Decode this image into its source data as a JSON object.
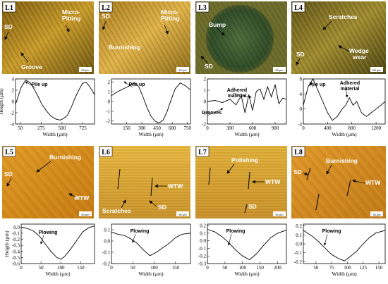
{
  "micrographs": [
    {
      "id": "L1",
      "scale": "50 μm",
      "annotations": [
        "SD",
        "Micro-\nPitting",
        "Groove"
      ]
    },
    {
      "id": "L2",
      "scale": "50 μm",
      "annotations": [
        "SD",
        "Micro-\nPitting",
        "Burnishing"
      ]
    },
    {
      "id": "L3",
      "scale": "50 μm",
      "annotations": [
        "Bump",
        "SD"
      ]
    },
    {
      "id": "L4",
      "scale": "50 μm",
      "annotations": [
        "Scratches",
        "SD",
        "Wedge\nwear"
      ]
    },
    {
      "id": "L5",
      "scale": "50 μm",
      "annotations": [
        "Burnishing",
        "SD",
        "WTW"
      ]
    },
    {
      "id": "L6",
      "scale": "50 μm",
      "annotations": [
        "WTW",
        "Scratches",
        "SD"
      ]
    },
    {
      "id": "L7",
      "scale": "50 μm",
      "annotations": [
        "Polishing",
        "WTW",
        "SD"
      ]
    },
    {
      "id": "L8",
      "scale": "50 μm",
      "annotations": [
        "Burnishing",
        "SD",
        "WTW"
      ]
    }
  ],
  "chart_data": [
    {
      "id": "L1",
      "type": "line",
      "xlabel": "Width (μm)",
      "ylabel": "Heigth (μm)",
      "xticks": [
        "50",
        "275",
        "500",
        "725"
      ],
      "yticks": [
        "4",
        "2",
        "0",
        "-2",
        "-4"
      ],
      "xlim": [
        0,
        850
      ],
      "ylim": [
        -4,
        4
      ],
      "annotations": [
        "Pile up"
      ],
      "x": [
        0,
        60,
        110,
        160,
        200,
        240,
        280,
        330,
        380,
        430,
        480,
        520,
        560,
        600,
        640,
        680,
        720,
        760,
        800,
        850
      ],
      "y": [
        -0.5,
        2.5,
        3.8,
        3.3,
        2.2,
        1.0,
        -0.4,
        -1.6,
        -2.6,
        -3.1,
        -3.3,
        -3.0,
        -2.4,
        -1.0,
        0.6,
        2.0,
        3.2,
        3.4,
        2.6,
        1.2
      ]
    },
    {
      "id": "L2",
      "type": "line",
      "xlabel": "Width (μm)",
      "ylabel": "",
      "xticks": [
        "150",
        "300",
        "450",
        "600",
        "750"
      ],
      "yticks": [
        "2",
        "1",
        "0",
        "-1",
        "-2"
      ],
      "xlim": [
        0,
        780
      ],
      "ylim": [
        -2.3,
        2.3
      ],
      "annotations": [
        "Pile up"
      ],
      "x": [
        0,
        60,
        120,
        180,
        230,
        270,
        310,
        350,
        390,
        430,
        470,
        510,
        550,
        590,
        630,
        680,
        730,
        780
      ],
      "y": [
        0.6,
        1.0,
        1.3,
        1.6,
        1.9,
        1.5,
        0.5,
        -0.6,
        -1.5,
        -2.0,
        -2.2,
        -1.9,
        -1.0,
        0.2,
        1.3,
        1.9,
        1.6,
        1.2
      ]
    },
    {
      "id": "L3",
      "type": "line",
      "xlabel": "Width (μm)",
      "ylabel": "",
      "xticks": [
        "0",
        "300",
        "600",
        "900"
      ],
      "yticks": [
        "2",
        "1",
        "0",
        "-1",
        "-2"
      ],
      "xlim": [
        0,
        1050
      ],
      "ylim": [
        -2,
        2
      ],
      "annotations": [
        "Adhered\nmaterial",
        "Grooves"
      ],
      "x": [
        0,
        100,
        200,
        300,
        380,
        450,
        500,
        550,
        600,
        650,
        700,
        750,
        800,
        850,
        900,
        950,
        1000,
        1050
      ],
      "y": [
        0.0,
        0.1,
        -0.1,
        0.2,
        -0.3,
        0.5,
        -1.0,
        0.6,
        -0.8,
        0.9,
        1.1,
        0.2,
        1.3,
        0.4,
        1.5,
        -0.2,
        0.3,
        0.2
      ]
    },
    {
      "id": "L4",
      "type": "line",
      "xlabel": "Width (μm)",
      "ylabel": "",
      "xticks": [
        "0",
        "400",
        "800",
        "1200"
      ],
      "yticks": [
        "8",
        "4",
        "0",
        "-4"
      ],
      "xlim": [
        0,
        1350
      ],
      "ylim": [
        -4,
        8
      ],
      "annotations": [
        "Pile up",
        "Adhered\nmaterial"
      ],
      "x": [
        0,
        80,
        160,
        240,
        320,
        400,
        480,
        560,
        640,
        700,
        760,
        820,
        880,
        960,
        1040,
        1120,
        1200,
        1280,
        1350
      ],
      "y": [
        1,
        6,
        8,
        5,
        2,
        -1,
        -3,
        -2,
        0,
        1,
        3,
        1,
        2,
        -1,
        -2,
        -1,
        0,
        1,
        2
      ]
    },
    {
      "id": "L5",
      "type": "line",
      "xlabel": "Width (μm)",
      "ylabel": "Heigth (μm)",
      "xticks": [
        "0",
        "50",
        "100",
        "150"
      ],
      "yticks": [
        "0.0",
        "-0.1",
        "-0.2",
        "-0.3",
        "-0.4",
        "-0.5",
        "-0.6"
      ],
      "xlim": [
        0,
        185
      ],
      "ylim": [
        -0.6,
        0.05
      ],
      "annotations": [
        "Plowing"
      ],
      "x": [
        0,
        15,
        30,
        45,
        60,
        75,
        90,
        100,
        110,
        125,
        140,
        155,
        170,
        185
      ],
      "y": [
        0.0,
        -0.02,
        -0.06,
        -0.14,
        -0.27,
        -0.4,
        -0.5,
        -0.53,
        -0.48,
        -0.36,
        -0.22,
        -0.08,
        -0.01,
        0.02
      ]
    },
    {
      "id": "L6",
      "type": "line",
      "xlabel": "Width (μm)",
      "ylabel": "",
      "xticks": [
        "0",
        "50",
        "100",
        "150"
      ],
      "yticks": [
        "0.1",
        "0.0",
        "-0.1",
        "-0.2"
      ],
      "xlim": [
        0,
        185
      ],
      "ylim": [
        -0.2,
        0.15
      ],
      "annotations": [
        "Plowing"
      ],
      "x": [
        0,
        15,
        30,
        45,
        60,
        75,
        90,
        105,
        120,
        135,
        150,
        165,
        185
      ],
      "y": [
        0.08,
        0.06,
        0.05,
        0.02,
        -0.02,
        -0.08,
        -0.13,
        -0.1,
        -0.06,
        -0.02,
        0.03,
        0.06,
        0.07
      ]
    },
    {
      "id": "L7",
      "type": "line",
      "xlabel": "Width (μm)",
      "ylabel": "",
      "xticks": [
        "0",
        "50",
        "100",
        "150",
        "200"
      ],
      "yticks": [
        "0.2",
        "0.1",
        "0.0",
        "-0.1",
        "-0.2",
        "-0.3"
      ],
      "xlim": [
        0,
        225
      ],
      "ylim": [
        -0.3,
        0.22
      ],
      "annotations": [
        "Plowing"
      ],
      "x": [
        0,
        20,
        40,
        60,
        80,
        100,
        120,
        140,
        160,
        180,
        200,
        225
      ],
      "y": [
        0.15,
        0.12,
        0.06,
        -0.02,
        -0.12,
        -0.2,
        -0.25,
        -0.17,
        -0.06,
        0.04,
        0.1,
        0.14
      ]
    },
    {
      "id": "L8",
      "type": "line",
      "xlabel": "Width (μm)",
      "ylabel": "",
      "xticks": [
        "50",
        "75",
        "100",
        "125",
        "150"
      ],
      "yticks": [
        "0.2",
        "0.1",
        "0.0",
        "-0.1",
        "-0.2"
      ],
      "xlim": [
        30,
        160
      ],
      "ylim": [
        -0.22,
        0.22
      ],
      "annotations": [
        "Plowing"
      ],
      "x": [
        30,
        45,
        55,
        65,
        75,
        85,
        95,
        105,
        115,
        125,
        135,
        145,
        160
      ],
      "y": [
        0.15,
        0.08,
        0.02,
        -0.05,
        -0.12,
        -0.16,
        -0.19,
        -0.14,
        -0.08,
        0.0,
        0.07,
        0.12,
        0.15
      ]
    }
  ]
}
